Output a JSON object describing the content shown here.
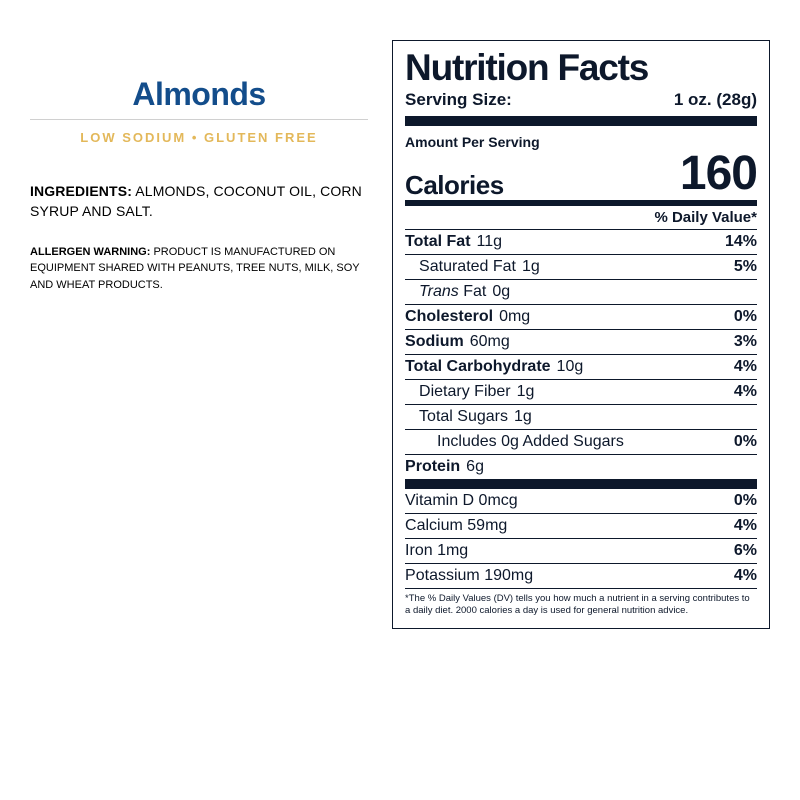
{
  "colors": {
    "title": "#134d8b",
    "tag": "#e3b85a",
    "panel_ink": "#0d182b",
    "border_light": "#d0d0d0",
    "bg": "#ffffff"
  },
  "product": {
    "title": "Almonds",
    "tags": "LOW SODIUM • GLUTEN FREE",
    "ingredients_label": "INGREDIENTS:",
    "ingredients_text": " ALMONDS, COCONUT OIL, CORN SYRUP AND SALT.",
    "allergen_label": "ALLERGEN WARNING:",
    "allergen_text": " PRODUCT IS MANUFACTURED ON EQUIPMENT SHARED WITH PEANUTS, TREE NUTS, MILK, SOY AND WHEAT PRODUCTS."
  },
  "panel": {
    "title": "Nutrition Facts",
    "serving_label": "Serving Size:",
    "serving_value": "1 oz. (28g)",
    "amount_label": "Amount Per Serving",
    "calories_label": "Calories",
    "calories_value": "160",
    "dv_header": "% Daily Value*",
    "rows": {
      "total_fat": {
        "name": "Total Fat",
        "amount": "11g",
        "dv": "14%"
      },
      "sat_fat": {
        "name": "Saturated Fat",
        "amount": "1g",
        "dv": "5%"
      },
      "trans_fat_i": "Trans",
      "trans_fat_rest": " Fat",
      "trans_fat_amt": "0g",
      "cholesterol": {
        "name": "Cholesterol",
        "amount": "0mg",
        "dv": "0%"
      },
      "sodium": {
        "name": "Sodium",
        "amount": "60mg",
        "dv": "3%"
      },
      "carb": {
        "name": "Total Carbohydrate",
        "amount": "10g",
        "dv": "4%"
      },
      "fiber": {
        "name": "Dietary Fiber",
        "amount": "1g",
        "dv": "4%"
      },
      "sugars": {
        "name": "Total Sugars",
        "amount": "1g"
      },
      "added_sugars": {
        "name": "Includes 0g Added Sugars",
        "dv": "0%"
      },
      "protein": {
        "name": "Protein",
        "amount": "6g"
      },
      "vit_d": {
        "name": "Vitamin D 0mcg",
        "dv": "0%"
      },
      "calcium": {
        "name": "Calcium 59mg",
        "dv": "4%"
      },
      "iron": {
        "name": "Iron 1mg",
        "dv": "6%"
      },
      "potassium": {
        "name": "Potassium 190mg",
        "dv": "4%"
      }
    },
    "footnote": "*The % Daily Values (DV) tells you how much a nutrient in a serving contributes to a daily diet. 2000 calories a day is used for general nutrition advice."
  }
}
